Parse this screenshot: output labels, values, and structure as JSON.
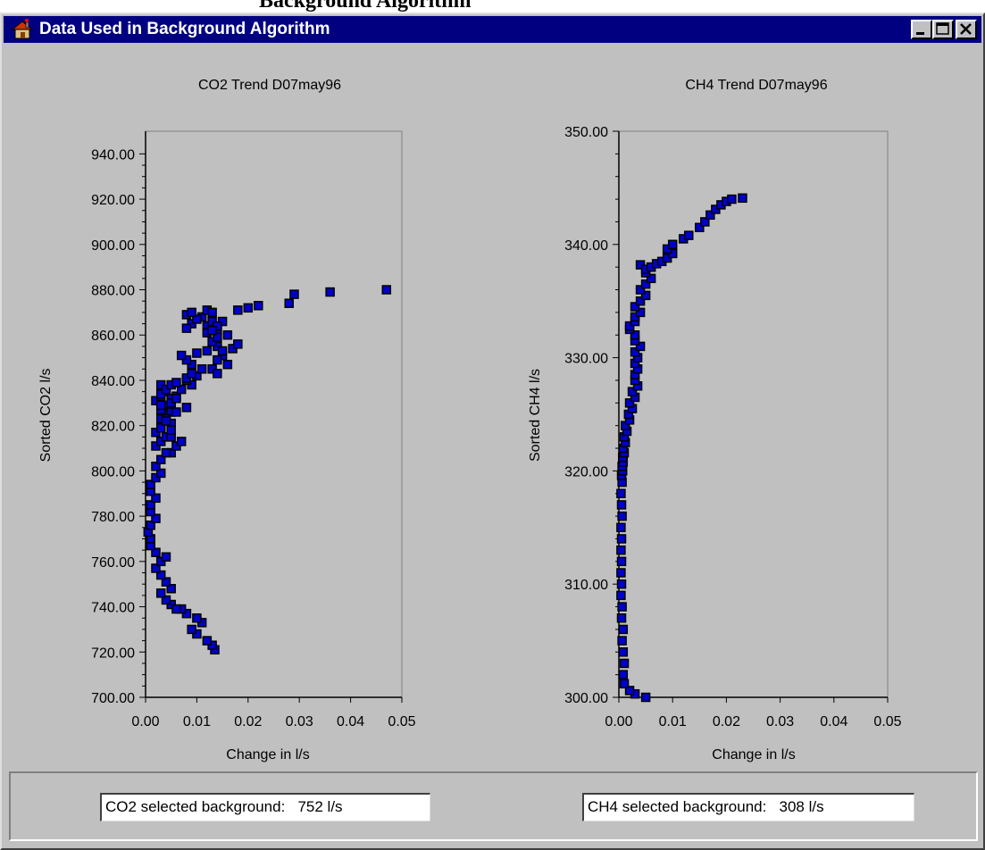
{
  "page_heading_fragment": "Background Algorithm",
  "window": {
    "title": "Data Used in Background Algorithm",
    "app_icon": "house-icon",
    "controls": [
      "minimize-icon",
      "maximize-icon",
      "close-icon"
    ]
  },
  "co2": {
    "field_value": "CO2 selected background:   752 l/s"
  },
  "ch4": {
    "field_value": "CH4 selected background:   308 l/s"
  },
  "colors": {
    "window_bg": "#c0c0c0",
    "title_bar": "#000080",
    "marker": "#0000cc"
  },
  "chart_data": [
    {
      "type": "scatter",
      "title": "CO2 Trend D07may96",
      "xlabel": "Change in l/s",
      "ylabel": "Sorted CO2 l/s",
      "xlim": [
        0,
        0.05
      ],
      "ylim": [
        700,
        950
      ],
      "x_ticks": [
        "0.00",
        "0.01",
        "0.02",
        "0.03",
        "0.04",
        "0.05"
      ],
      "y_ticks": [
        "700.00",
        "720.00",
        "740.00",
        "760.00",
        "780.00",
        "800.00",
        "820.00",
        "840.00",
        "860.00",
        "880.00",
        "900.00",
        "920.00",
        "940.00"
      ],
      "marker": "square",
      "x": [
        0.0135,
        0.013,
        0.012,
        0.01,
        0.009,
        0.011,
        0.01,
        0.008,
        0.007,
        0.005,
        0.004,
        0.003,
        0.006,
        0.005,
        0.004,
        0.003,
        0.002,
        0.003,
        0.004,
        0.002,
        0.001,
        0.001,
        0.0005,
        0.001,
        0.002,
        0.001,
        0.001,
        0.002,
        0.001,
        0.001,
        0.002,
        0.003,
        0.002,
        0.003,
        0.005,
        0.002,
        0.003,
        0.004,
        0.002,
        0.003,
        0.005,
        0.003,
        0.004,
        0.003,
        0.004,
        0.002,
        0.003,
        0.004,
        0.003,
        0.005,
        0.003,
        0.004,
        0.006,
        0.003,
        0.005,
        0.004,
        0.003,
        0.005,
        0.006,
        0.004,
        0.007,
        0.005,
        0.004,
        0.006,
        0.008,
        0.005,
        0.006,
        0.009,
        0.007,
        0.005,
        0.008,
        0.01,
        0.006,
        0.008,
        0.009,
        0.011,
        0.009,
        0.008,
        0.007,
        0.01,
        0.012,
        0.014,
        0.013,
        0.015,
        0.014,
        0.016,
        0.013,
        0.014,
        0.015,
        0.017,
        0.018,
        0.016,
        0.014,
        0.012,
        0.013,
        0.011,
        0.009,
        0.008,
        0.012,
        0.014,
        0.01,
        0.008,
        0.009,
        0.012,
        0.013,
        0.015,
        0.014,
        0.013,
        0.018,
        0.02,
        0.022,
        0.028,
        0.029,
        0.036,
        0.047
      ],
      "y": [
        721,
        723,
        725,
        728,
        730,
        733,
        735,
        737,
        739,
        741,
        743,
        746,
        739,
        748,
        751,
        754,
        757,
        760,
        762,
        764,
        767,
        770,
        773,
        776,
        779,
        782,
        785,
        788,
        791,
        794,
        797,
        799,
        802,
        805,
        808,
        811,
        813,
        815,
        817,
        819,
        821,
        823,
        825,
        827,
        829,
        831,
        833,
        835,
        838,
        832,
        834,
        836,
        833,
        829,
        826,
        823,
        819,
        815,
        811,
        808,
        813,
        818,
        822,
        826,
        828,
        830,
        832,
        838,
        836,
        838,
        840,
        842,
        839,
        841,
        843,
        845,
        847,
        849,
        851,
        852,
        853,
        855,
        857,
        851,
        849,
        847,
        845,
        843,
        853,
        854,
        856,
        860,
        862,
        864,
        866,
        868,
        865,
        863,
        861,
        859,
        867,
        869,
        870,
        871,
        870,
        866,
        864,
        862,
        871,
        872,
        873,
        874,
        878,
        879,
        880
      ]
    },
    {
      "type": "scatter",
      "title": "CH4 Trend D07may96",
      "xlabel": "Change in l/s",
      "ylabel": "Sorted CH4 l/s",
      "xlim": [
        0,
        0.05
      ],
      "ylim": [
        300,
        350
      ],
      "x_ticks": [
        "0.00",
        "0.01",
        "0.02",
        "0.03",
        "0.04",
        "0.05"
      ],
      "y_ticks": [
        "300.00",
        "310.00",
        "320.00",
        "330.00",
        "340.00",
        "350.00"
      ],
      "marker": "square",
      "x": [
        0.005,
        0.003,
        0.002,
        0.001,
        0.0008,
        0.001,
        0.0008,
        0.0006,
        0.0008,
        0.0005,
        0.0006,
        0.0004,
        0.0005,
        0.0004,
        0.0005,
        0.0004,
        0.0005,
        0.0004,
        0.0006,
        0.0005,
        0.0004,
        0.0006,
        0.0005,
        0.0007,
        0.0006,
        0.0008,
        0.0007,
        0.001,
        0.0008,
        0.0012,
        0.001,
        0.0015,
        0.0012,
        0.002,
        0.0018,
        0.0025,
        0.002,
        0.003,
        0.0025,
        0.0035,
        0.003,
        0.003,
        0.0035,
        0.003,
        0.0035,
        0.003,
        0.004,
        0.003,
        0.003,
        0.002,
        0.002,
        0.003,
        0.003,
        0.004,
        0.003,
        0.004,
        0.005,
        0.004,
        0.005,
        0.006,
        0.005,
        0.006,
        0.004,
        0.005,
        0.006,
        0.007,
        0.008,
        0.009,
        0.01,
        0.009,
        0.01,
        0.012,
        0.013,
        0.015,
        0.016,
        0.017,
        0.018,
        0.019,
        0.02,
        0.021,
        0.023
      ],
      "y": [
        300.0,
        300.3,
        300.6,
        301.2,
        302.0,
        303.0,
        304.0,
        305.0,
        306.0,
        307.0,
        308.0,
        309.0,
        310.0,
        311.0,
        312.0,
        313.0,
        314.0,
        315.0,
        316.0,
        317.0,
        318.0,
        319.0,
        319.6,
        320.0,
        320.4,
        320.8,
        321.2,
        321.6,
        322.0,
        322.5,
        323.0,
        323.5,
        324.0,
        324.5,
        325.0,
        325.5,
        326.0,
        326.5,
        327.0,
        327.5,
        328.0,
        328.5,
        329.0,
        329.5,
        330.0,
        330.5,
        331.0,
        331.5,
        332.0,
        332.5,
        332.8,
        333.2,
        333.6,
        334.0,
        334.5,
        335.0,
        335.5,
        336.0,
        336.5,
        337.0,
        337.5,
        338.0,
        338.2,
        337.8,
        338.0,
        338.3,
        338.5,
        338.8,
        339.2,
        339.6,
        340.0,
        340.5,
        340.8,
        341.5,
        342.0,
        342.6,
        343.1,
        343.5,
        343.8,
        344.0,
        344.1
      ]
    }
  ]
}
